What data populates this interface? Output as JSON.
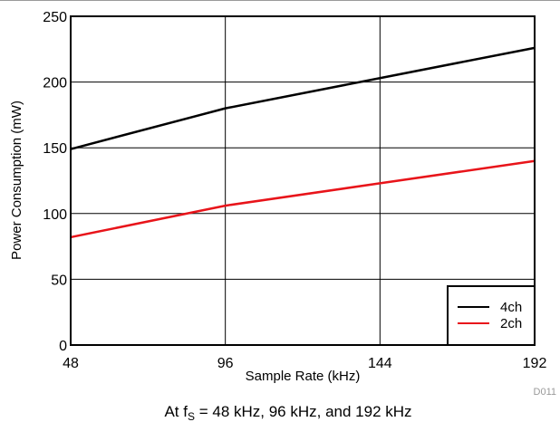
{
  "chart_data": {
    "type": "line",
    "xlabel": "Sample Rate (kHz)",
    "ylabel": "Power Consumption (mW)",
    "x": [
      48,
      96,
      144,
      192
    ],
    "xlim": [
      48,
      192
    ],
    "ylim": [
      0,
      250
    ],
    "x_ticks": [
      48,
      96,
      144,
      192
    ],
    "y_ticks": [
      0,
      50,
      100,
      150,
      200,
      250
    ],
    "grid": true,
    "legend_position": "bottom-right",
    "series": [
      {
        "name": "4ch",
        "color": "#000000",
        "x": [
          48,
          96,
          144,
          192
        ],
        "values": [
          149,
          180,
          203,
          226
        ]
      },
      {
        "name": "2ch",
        "color": "#e8141a",
        "x": [
          48,
          96,
          144,
          192
        ],
        "values": [
          82,
          106,
          123,
          140
        ]
      }
    ]
  },
  "figure_id": "D011",
  "caption": {
    "prefix": "At f",
    "subscript": "S",
    "suffix": " = 48 kHz, 96 kHz, and 192 kHz"
  }
}
